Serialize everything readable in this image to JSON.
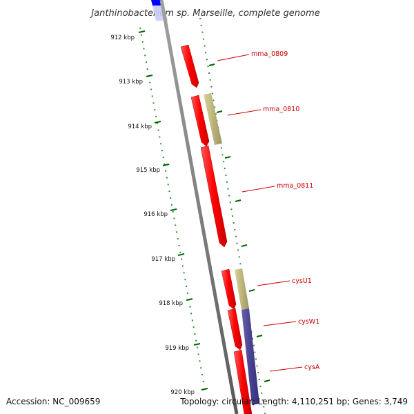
{
  "header": {
    "title": "Janthinobacterium sp. Marseille, complete genome"
  },
  "footer": {
    "accession": "Accession: NC_009659",
    "summary": "Topology: circular; Length: 4,110,251 bp; Genes: 3,749"
  },
  "scale": {
    "unit": "kbp",
    "ticks": [
      "912 kbp",
      "913 kbp",
      "914 kbp",
      "915 kbp",
      "916 kbp",
      "917 kbp",
      "918 kbp",
      "919 kbp",
      "920 kbp"
    ]
  },
  "genes": [
    {
      "label": "mma_0809",
      "strand": "reverse",
      "type": "CDS"
    },
    {
      "label": "mma_0810",
      "strand": "reverse",
      "type": "CDS"
    },
    {
      "label": "mma_0811",
      "strand": "reverse",
      "type": "CDS"
    },
    {
      "label": "cysU1",
      "strand": "reverse",
      "type": "CDS"
    },
    {
      "label": "cysW1",
      "strand": "reverse",
      "type": "CDS"
    },
    {
      "label": "cysA",
      "strand": "reverse",
      "type": "CDS"
    }
  ],
  "colors": {
    "cds": "#ff0000",
    "cog_khaki": "#bdb76b",
    "cog_purple": "#483d8b",
    "cog_blue": "#0000ff",
    "backbone": "#808080",
    "tick_green": "#006400",
    "label_red": "#cc0000"
  }
}
